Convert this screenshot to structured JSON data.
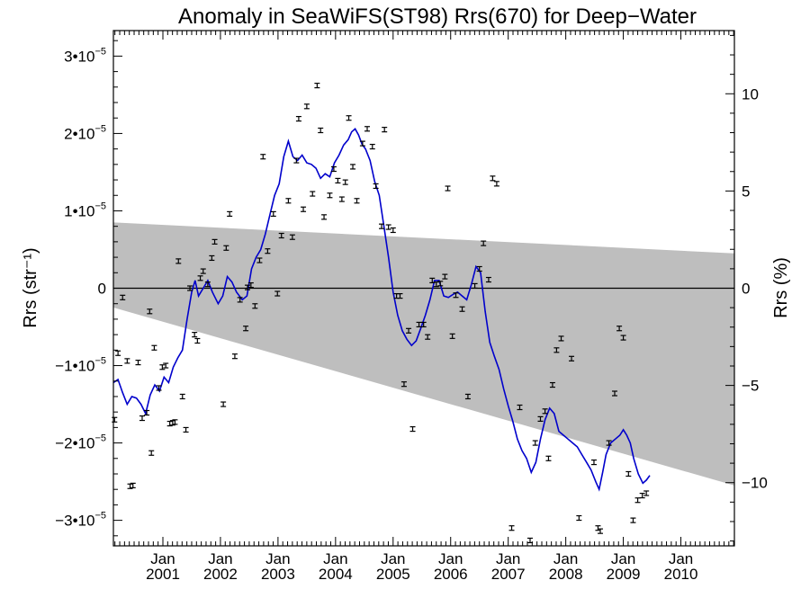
{
  "chart_data": {
    "type": "scatter",
    "title": "Anomaly in SeaWiFS(ST98) Rrs(670) for Deep−Water",
    "ylabel": "Rrs (str⁻¹)",
    "y2label": "Rrs (%)",
    "xlabel": "",
    "ylim": [
      -3.33e-05,
      3.33e-05
    ],
    "y2lim": [
      -13.25,
      13.25
    ],
    "xlim": [
      2000.14,
      2010.93
    ],
    "grid": false,
    "legend": "none",
    "colors": {
      "points": "#000000",
      "running_mean": "#0000cc",
      "band": "#bebebe",
      "zero_line": "#000000"
    },
    "x_ticks": [
      {
        "x": 2001.0,
        "line1": "Jan",
        "line2": "2001"
      },
      {
        "x": 2002.0,
        "line1": "Jan",
        "line2": "2002"
      },
      {
        "x": 2003.0,
        "line1": "Jan",
        "line2": "2003"
      },
      {
        "x": 2004.0,
        "line1": "Jan",
        "line2": "2004"
      },
      {
        "x": 2005.0,
        "line1": "Jan",
        "line2": "2005"
      },
      {
        "x": 2006.0,
        "line1": "Jan",
        "line2": "2006"
      },
      {
        "x": 2007.0,
        "line1": "Jan",
        "line2": "2007"
      },
      {
        "x": 2008.0,
        "line1": "Jan",
        "line2": "2008"
      },
      {
        "x": 2009.0,
        "line1": "Jan",
        "line2": "2009"
      },
      {
        "x": 2010.0,
        "line1": "Jan",
        "line2": "2010"
      }
    ],
    "y_ticks": [
      {
        "value": 3e-05,
        "mant": "3•10",
        "exp": "−5"
      },
      {
        "value": 2e-05,
        "mant": "2•10",
        "exp": "−5"
      },
      {
        "value": 1e-05,
        "mant": "1•10",
        "exp": "−5"
      },
      {
        "value": 0,
        "mant": "0",
        "exp": ""
      },
      {
        "value": -1e-05,
        "mant": "−1•10",
        "exp": "−5"
      },
      {
        "value": -2e-05,
        "mant": "−2•10",
        "exp": "−5"
      },
      {
        "value": -3e-05,
        "mant": "−3•10",
        "exp": "−5"
      }
    ],
    "y2_ticks": [
      {
        "value": 10,
        "label": "10"
      },
      {
        "value": 5,
        "label": "5"
      },
      {
        "value": 0,
        "label": "0"
      },
      {
        "value": -5,
        "label": "−5"
      },
      {
        "value": -10,
        "label": "−10"
      }
    ],
    "band": {
      "left": {
        "x": 2000.14,
        "upper": 8.5e-06,
        "lower": -2.5e-06
      },
      "right": {
        "x": 2010.93,
        "upper": 4.5e-06,
        "lower": -2.55e-05
      }
    },
    "series": [
      {
        "values": [
          [
            2000.16,
            -1.7e-05
          ],
          [
            2000.22,
            -8.4e-06
          ],
          [
            2000.3,
            -1.2e-06
          ],
          [
            2000.38,
            -9.4e-06
          ],
          [
            2000.43,
            -2.56e-05
          ],
          [
            2000.48,
            -2.55e-05
          ],
          [
            2000.57,
            -9.6e-06
          ],
          [
            2000.64,
            -1.68e-05
          ],
          [
            2000.72,
            -1.61e-05
          ],
          [
            2000.77,
            -3e-06
          ],
          [
            2000.8,
            -2.13e-05
          ],
          [
            2000.85,
            -7.7e-06
          ],
          [
            2000.93,
            -1.29e-05
          ],
          [
            2000.99,
            -1.02e-05
          ],
          [
            2001.05,
            -1e-05
          ],
          [
            2001.12,
            -1.75e-05
          ],
          [
            2001.17,
            -1.74e-05
          ],
          [
            2001.21,
            -1.73e-05
          ],
          [
            2001.27,
            3.5e-06
          ],
          [
            2001.34,
            -1.4e-05
          ],
          [
            2001.4,
            -1.83e-05
          ],
          [
            2001.47,
            0.0
          ],
          [
            2001.55,
            -6e-06
          ],
          [
            2001.6,
            -6.8e-06
          ],
          [
            2001.65,
            1.3e-06
          ],
          [
            2001.7,
            2.2e-06
          ],
          [
            2001.78,
            5e-07
          ],
          [
            2001.85,
            3.9e-06
          ],
          [
            2001.9,
            6e-06
          ],
          [
            2002.05,
            -1.5e-05
          ],
          [
            2002.1,
            5.2e-06
          ],
          [
            2002.16,
            9.6e-06
          ],
          [
            2002.25,
            -8.8e-06
          ],
          [
            2002.34,
            -1.5e-06
          ],
          [
            2002.44,
            -5.2e-06
          ],
          [
            2002.47,
            1e-07
          ],
          [
            2002.53,
            4e-07
          ],
          [
            2002.6,
            -2.3e-06
          ],
          [
            2002.68,
            3.6e-06
          ],
          [
            2002.74,
            1.7e-05
          ],
          [
            2002.82,
            4.8e-06
          ],
          [
            2002.92,
            9.6e-06
          ],
          [
            2002.99,
            -7e-07
          ],
          [
            2003.06,
            6.8e-06
          ],
          [
            2003.18,
            1.13e-05
          ],
          [
            2003.25,
            6.6e-06
          ],
          [
            2003.32,
            1.65e-05
          ],
          [
            2003.36,
            2.19e-05
          ],
          [
            2003.44,
            1.02e-05
          ],
          [
            2003.5,
            2.35e-05
          ],
          [
            2003.6,
            1.22e-05
          ],
          [
            2003.68,
            2.62e-05
          ],
          [
            2003.74,
            2.04e-05
          ],
          [
            2003.8,
            9.2e-06
          ],
          [
            2003.9,
            1.2e-05
          ],
          [
            2003.97,
            1.54e-05
          ],
          [
            2004.04,
            1.39e-05
          ],
          [
            2004.11,
            1.15e-05
          ],
          [
            2004.17,
            1.37e-05
          ],
          [
            2004.23,
            2.2e-05
          ],
          [
            2004.3,
            1.57e-05
          ],
          [
            2004.37,
            1.13e-05
          ],
          [
            2004.47,
            1.87e-05
          ],
          [
            2004.55,
            2.06e-05
          ],
          [
            2004.64,
            1.83e-05
          ],
          [
            2004.7,
            1.32e-05
          ],
          [
            2004.8,
            8e-06
          ],
          [
            2004.85,
            2.05e-05
          ],
          [
            2004.92,
            7.9e-06
          ],
          [
            2005.0,
            7.5e-06
          ],
          [
            2005.06,
            -1e-06
          ],
          [
            2005.12,
            -1e-06
          ],
          [
            2005.19,
            -1.24e-05
          ],
          [
            2005.27,
            -5.5e-06
          ],
          [
            2005.34,
            -1.82e-05
          ],
          [
            2005.45,
            -4.7e-06
          ],
          [
            2005.53,
            -4.7e-06
          ],
          [
            2005.6,
            -6.3e-06
          ],
          [
            2005.68,
            1e-06
          ],
          [
            2005.75,
            5e-07
          ],
          [
            2005.82,
            6e-07
          ],
          [
            2005.9,
            1.5e-06
          ],
          [
            2005.95,
            1.29e-05
          ],
          [
            2006.03,
            -6.2e-06
          ],
          [
            2006.09,
            -9e-07
          ],
          [
            2006.2,
            -2.7e-06
          ],
          [
            2006.3,
            -1.4e-05
          ],
          [
            2006.42,
            3e-07
          ],
          [
            2006.5,
            2.5e-06
          ],
          [
            2006.57,
            5.8e-06
          ],
          [
            2006.66,
            1.1e-06
          ],
          [
            2006.73,
            1.42e-05
          ],
          [
            2006.8,
            1.35e-05
          ],
          [
            2007.06,
            -3.1e-05
          ],
          [
            2007.2,
            -1.54e-05
          ],
          [
            2007.38,
            -3.26e-05
          ],
          [
            2007.47,
            -2e-05
          ],
          [
            2007.56,
            -1.69e-05
          ],
          [
            2007.64,
            -1.59e-05
          ],
          [
            2007.7,
            -2.2e-05
          ],
          [
            2007.77,
            -1.25e-05
          ],
          [
            2007.84,
            -8e-06
          ],
          [
            2007.92,
            -6.5e-06
          ],
          [
            2008.1,
            -9.1e-06
          ],
          [
            2008.23,
            -2.97e-05
          ],
          [
            2008.49,
            -2.25e-05
          ],
          [
            2008.56,
            -3.1e-05
          ],
          [
            2008.6,
            -3.14e-05
          ],
          [
            2008.75,
            -2e-05
          ],
          [
            2008.85,
            -1.36e-05
          ],
          [
            2008.93,
            -5.2e-06
          ],
          [
            2009.0,
            -6.4e-06
          ],
          [
            2009.09,
            -2.4e-05
          ],
          [
            2009.17,
            -3e-05
          ],
          [
            2009.25,
            -2.74e-05
          ],
          [
            2009.33,
            -2.68e-05
          ],
          [
            2009.4,
            -2.65e-05
          ]
        ]
      },
      {
        "values": [
          [
            2000.14,
            -1.22e-05
          ],
          [
            2000.22,
            -1.18e-05
          ],
          [
            2000.3,
            -1.35e-05
          ],
          [
            2000.38,
            -1.5e-05
          ],
          [
            2000.46,
            -1.4e-05
          ],
          [
            2000.54,
            -1.42e-05
          ],
          [
            2000.62,
            -1.5e-05
          ],
          [
            2000.7,
            -1.62e-05
          ],
          [
            2000.78,
            -1.38e-05
          ],
          [
            2000.86,
            -1.25e-05
          ],
          [
            2000.94,
            -1.33e-05
          ],
          [
            2001.02,
            -1.15e-05
          ],
          [
            2001.1,
            -1.22e-05
          ],
          [
            2001.18,
            -1.02e-05
          ],
          [
            2001.26,
            -9e-06
          ],
          [
            2001.34,
            -8e-06
          ],
          [
            2001.42,
            -4e-06
          ],
          [
            2001.5,
            -5e-07
          ],
          [
            2001.56,
            1e-06
          ],
          [
            2001.62,
            -1e-06
          ],
          [
            2001.7,
            0.0
          ],
          [
            2001.78,
            1e-06
          ],
          [
            2001.86,
            -5e-07
          ],
          [
            2001.96,
            -2e-06
          ],
          [
            2002.04,
            -1e-06
          ],
          [
            2002.12,
            1.5e-06
          ],
          [
            2002.2,
            8e-07
          ],
          [
            2002.28,
            -5e-07
          ],
          [
            2002.38,
            -1.5e-06
          ],
          [
            2002.46,
            -1e-06
          ],
          [
            2002.54,
            2.5e-06
          ],
          [
            2002.62,
            4e-06
          ],
          [
            2002.7,
            5e-06
          ],
          [
            2002.78,
            7e-06
          ],
          [
            2002.86,
            9.5e-06
          ],
          [
            2002.94,
            1.2e-05
          ],
          [
            2003.02,
            1.35e-05
          ],
          [
            2003.1,
            1.7e-05
          ],
          [
            2003.18,
            1.9e-05
          ],
          [
            2003.26,
            1.7e-05
          ],
          [
            2003.34,
            1.65e-05
          ],
          [
            2003.42,
            1.72e-05
          ],
          [
            2003.5,
            1.62e-05
          ],
          [
            2003.58,
            1.6e-05
          ],
          [
            2003.66,
            1.55e-05
          ],
          [
            2003.74,
            1.42e-05
          ],
          [
            2003.82,
            1.48e-05
          ],
          [
            2003.9,
            1.44e-05
          ],
          [
            2003.98,
            1.62e-05
          ],
          [
            2004.06,
            1.72e-05
          ],
          [
            2004.14,
            1.85e-05
          ],
          [
            2004.22,
            1.92e-05
          ],
          [
            2004.28,
            2.02e-05
          ],
          [
            2004.34,
            2.06e-05
          ],
          [
            2004.4,
            1.98e-05
          ],
          [
            2004.46,
            1.86e-05
          ],
          [
            2004.52,
            1.8e-05
          ],
          [
            2004.6,
            1.65e-05
          ],
          [
            2004.68,
            1.38e-05
          ],
          [
            2004.76,
            1.2e-05
          ],
          [
            2004.84,
            8e-06
          ],
          [
            2004.92,
            4e-06
          ],
          [
            2005.0,
            -5e-07
          ],
          [
            2005.08,
            -3.5e-06
          ],
          [
            2005.16,
            -5.5e-06
          ],
          [
            2005.24,
            -6.6e-06
          ],
          [
            2005.32,
            -7.4e-06
          ],
          [
            2005.4,
            -6.8e-06
          ],
          [
            2005.48,
            -5.2e-06
          ],
          [
            2005.56,
            -3.5e-06
          ],
          [
            2005.64,
            -1.5e-06
          ],
          [
            2005.72,
            1e-06
          ],
          [
            2005.8,
            1e-06
          ],
          [
            2005.88,
            -1e-06
          ],
          [
            2005.96,
            -1.2e-06
          ],
          [
            2006.04,
            -8e-07
          ],
          [
            2006.12,
            -5e-07
          ],
          [
            2006.2,
            -1e-06
          ],
          [
            2006.28,
            -1.5e-06
          ],
          [
            2006.36,
            5e-07
          ],
          [
            2006.44,
            2.8e-06
          ],
          [
            2006.52,
            2e-06
          ],
          [
            2006.6,
            -3e-06
          ],
          [
            2006.68,
            -7e-06
          ],
          [
            2006.76,
            -8.8e-06
          ],
          [
            2006.84,
            -1.05e-05
          ],
          [
            2006.92,
            -1.3e-05
          ],
          [
            2007.0,
            -1.52e-05
          ],
          [
            2007.08,
            -1.72e-05
          ],
          [
            2007.16,
            -1.95e-05
          ],
          [
            2007.24,
            -2.1e-05
          ],
          [
            2007.32,
            -2.2e-05
          ],
          [
            2007.4,
            -2.38e-05
          ],
          [
            2007.48,
            -2.25e-05
          ],
          [
            2007.56,
            -1.95e-05
          ],
          [
            2007.64,
            -1.7e-05
          ],
          [
            2007.72,
            -1.55e-05
          ],
          [
            2007.8,
            -1.62e-05
          ],
          [
            2007.88,
            -1.85e-05
          ],
          [
            2007.96,
            -1.9e-05
          ],
          [
            2008.04,
            -1.95e-05
          ],
          [
            2008.12,
            -2e-05
          ],
          [
            2008.2,
            -2.05e-05
          ],
          [
            2008.28,
            -2.15e-05
          ],
          [
            2008.36,
            -2.25e-05
          ],
          [
            2008.44,
            -2.35e-05
          ],
          [
            2008.52,
            -2.5e-05
          ],
          [
            2008.58,
            -2.6e-05
          ],
          [
            2008.64,
            -2.38e-05
          ],
          [
            2008.7,
            -2.15e-05
          ],
          [
            2008.78,
            -2e-05
          ],
          [
            2008.86,
            -1.95e-05
          ],
          [
            2008.94,
            -1.9e-05
          ],
          [
            2009.0,
            -1.83e-05
          ],
          [
            2009.06,
            -1.9e-05
          ],
          [
            2009.12,
            -2e-05
          ],
          [
            2009.18,
            -2.2e-05
          ],
          [
            2009.26,
            -2.4e-05
          ],
          [
            2009.34,
            -2.52e-05
          ],
          [
            2009.4,
            -2.48e-05
          ],
          [
            2009.46,
            -2.42e-05
          ]
        ]
      }
    ]
  }
}
